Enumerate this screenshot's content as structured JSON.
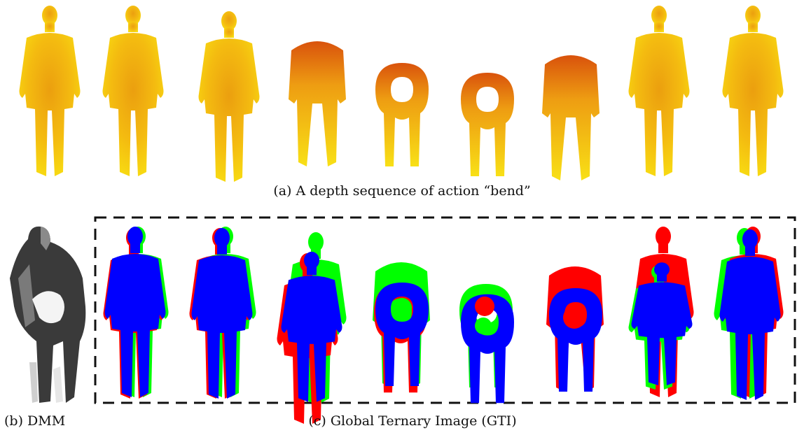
{
  "figure": {
    "caption_a": "(a) A depth sequence of action  “bend”",
    "caption_b": "(b) DMM",
    "caption_c": "(c) Global Ternary Image (GTI)"
  },
  "colors": {
    "depth_light": "#f7d10a",
    "depth_mid": "#f0a30c",
    "depth_dark": "#d9480d",
    "gti_blue": "#0000ff",
    "gti_green": "#00ff00",
    "gti_red": "#ff0000",
    "dmm_dark": "#3a3a3a",
    "dmm_mid": "#777777",
    "dmm_light": "#d8d8d8"
  }
}
